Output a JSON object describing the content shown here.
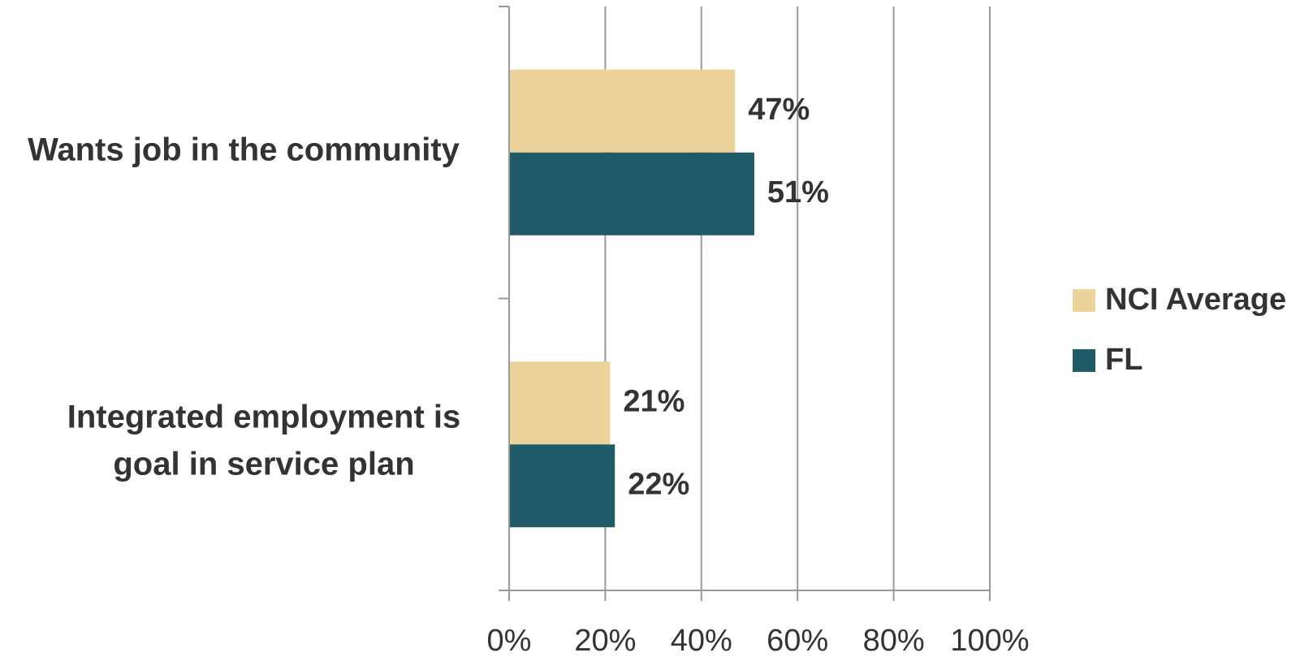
{
  "chart_data": {
    "type": "bar",
    "orientation": "horizontal",
    "categories": [
      [
        "Wants job in the community"
      ],
      [
        "Integrated employment is",
        "goal in service plan"
      ]
    ],
    "series": [
      {
        "name": "NCI Average",
        "color": "#ebd39b",
        "values": [
          47,
          21
        ],
        "labels": [
          "47%",
          "21%"
        ]
      },
      {
        "name": "FL",
        "color": "#225b68",
        "values": [
          51,
          22
        ],
        "labels": [
          "51%",
          "22%"
        ]
      }
    ],
    "xlim": [
      0,
      100
    ],
    "xticks": [
      0,
      20,
      40,
      60,
      80,
      100
    ],
    "xtick_labels": [
      "0%",
      "20%",
      "40%",
      "60%",
      "80%",
      "100%"
    ],
    "grid": "vertical",
    "legend": {
      "position": "right"
    },
    "title": "",
    "xlabel": "",
    "ylabel": ""
  }
}
